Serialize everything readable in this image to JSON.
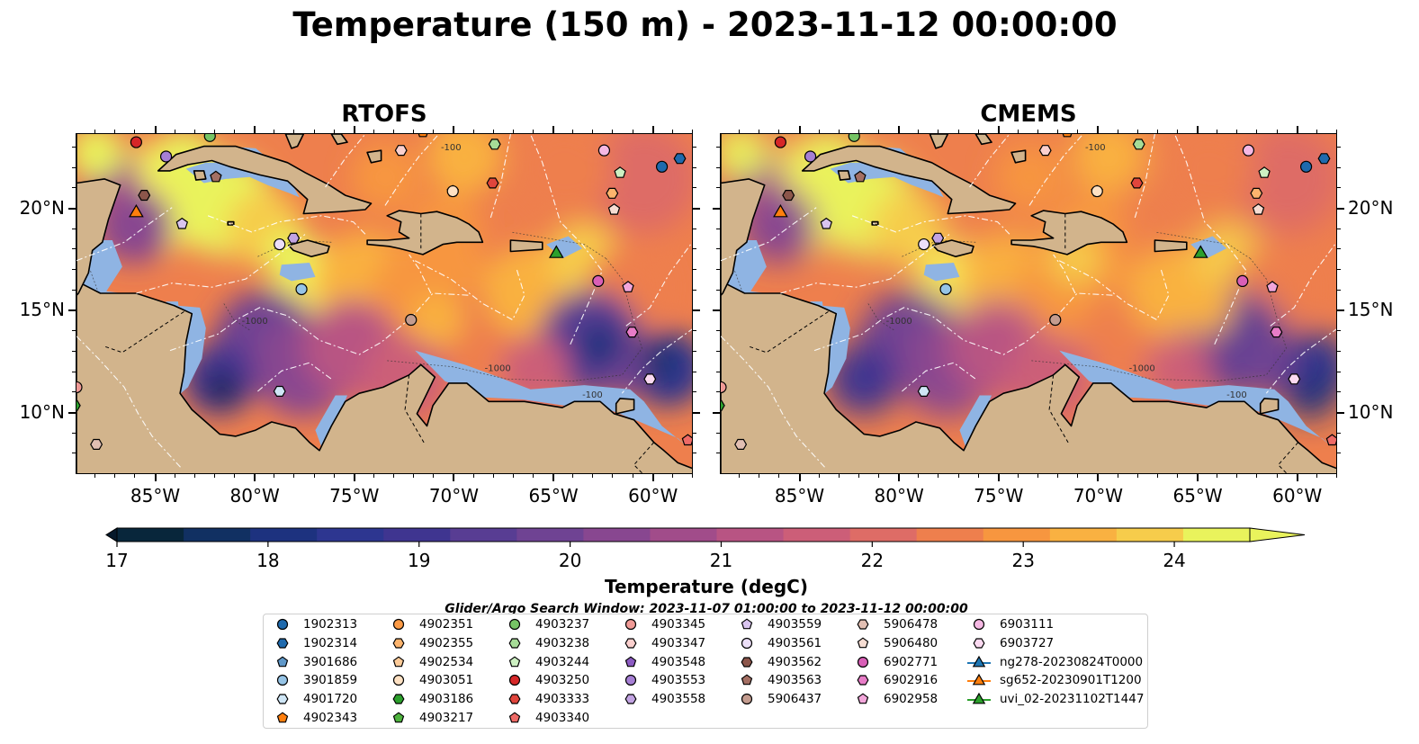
{
  "title": "Temperature (150 m) - 2023-11-12 00:00:00",
  "panels": [
    {
      "title": "RTOFS"
    },
    {
      "title": "CMEMS"
    }
  ],
  "map": {
    "lon_range": [
      -89,
      -58
    ],
    "lat_range": [
      7,
      23.7
    ],
    "lon_ticks": [
      {
        "value": -85,
        "label": "85°W"
      },
      {
        "value": -80,
        "label": "80°W"
      },
      {
        "value": -75,
        "label": "75°W"
      },
      {
        "value": -70,
        "label": "70°W"
      },
      {
        "value": -65,
        "label": "65°W"
      },
      {
        "value": -60,
        "label": "60°W"
      }
    ],
    "lat_ticks": [
      {
        "value": 20,
        "label": "20°N"
      },
      {
        "value": 15,
        "label": "15°N"
      },
      {
        "value": 10,
        "label": "10°N"
      }
    ],
    "contour_labels": [
      "-1000",
      "-1000",
      "-100",
      "-100"
    ],
    "colors": {
      "land": "#d2b48c",
      "shelf": "#8fb4e3",
      "deep_cold": "#0b2236",
      "eez": "#ffffff",
      "coast": "#000000"
    }
  },
  "colorbar": {
    "label": "Temperature (degC)",
    "min": 17,
    "max": 24.5,
    "step": 0.5,
    "ticks": [
      17,
      18,
      19,
      20,
      21,
      22,
      23,
      24
    ],
    "colors": [
      "#08263b",
      "#113062",
      "#1d327f",
      "#2d3690",
      "#3f3590",
      "#583d93",
      "#6f4393",
      "#884790",
      "#a14c8a",
      "#b85483",
      "#cc5e78",
      "#de6c66",
      "#ee7f4d",
      "#f7963f",
      "#f9b141",
      "#f6cc4b",
      "#e9f35c"
    ],
    "under_color": "#06192b",
    "over_color": "#e9f35c"
  },
  "search_window": "Glider/Argo Search Window: 2023-11-07 01:00:00 to 2023-11-12 00:00:00",
  "legend": {
    "columns": [
      [
        {
          "label": "1902313",
          "marker": "circle",
          "color": "#1f6aad"
        },
        {
          "label": "1902314",
          "marker": "hexagon",
          "color": "#1f6aad"
        },
        {
          "label": "3901686",
          "marker": "pentagon",
          "color": "#5f98c9"
        },
        {
          "label": "3901859",
          "marker": "circle",
          "color": "#96c4e6"
        },
        {
          "label": "4901720",
          "marker": "hexagon",
          "color": "#cfe6f6"
        },
        {
          "label": "4902343",
          "marker": "pentagon",
          "color": "#ff7f0e"
        }
      ],
      [
        {
          "label": "4902351",
          "marker": "circle",
          "color": "#fc9a45"
        },
        {
          "label": "4902355",
          "marker": "hexagon",
          "color": "#fdb46d"
        },
        {
          "label": "4902534",
          "marker": "pentagon",
          "color": "#fdcb99"
        },
        {
          "label": "4903051",
          "marker": "circle",
          "color": "#fee1c3"
        },
        {
          "label": "4903186",
          "marker": "hexagon",
          "color": "#2ca02c"
        },
        {
          "label": "4903217",
          "marker": "pentagon",
          "color": "#4eb33e"
        }
      ],
      [
        {
          "label": "4903237",
          "marker": "circle",
          "color": "#76c465"
        },
        {
          "label": "4903238",
          "marker": "hexagon",
          "color": "#a6dc97"
        },
        {
          "label": "4903244",
          "marker": "pentagon",
          "color": "#cdf0c2"
        },
        {
          "label": "4903250",
          "marker": "circle",
          "color": "#d62728"
        },
        {
          "label": "4903333",
          "marker": "hexagon",
          "color": "#e0453c"
        },
        {
          "label": "4903340",
          "marker": "pentagon",
          "color": "#ee6a66"
        }
      ],
      [
        {
          "label": "4903345",
          "marker": "circle",
          "color": "#f09a96"
        },
        {
          "label": "4903347",
          "marker": "hexagon",
          "color": "#fbd0ce"
        },
        {
          "label": "4903548",
          "marker": "pentagon",
          "color": "#8c5bc2"
        },
        {
          "label": "4903553",
          "marker": "circle",
          "color": "#a67fd4"
        },
        {
          "label": "4903558",
          "marker": "hexagon",
          "color": "#c2a3e2"
        }
      ],
      [
        {
          "label": "4903559",
          "marker": "pentagon",
          "color": "#d9c4ef"
        },
        {
          "label": "4903561",
          "marker": "circle",
          "color": "#ecdff8"
        },
        {
          "label": "4903562",
          "marker": "hexagon",
          "color": "#8c564b"
        },
        {
          "label": "4903563",
          "marker": "pentagon",
          "color": "#a46f63"
        },
        {
          "label": "5906437",
          "marker": "circle",
          "color": "#c49c8f"
        }
      ],
      [
        {
          "label": "5906478",
          "marker": "hexagon",
          "color": "#e2bfb3"
        },
        {
          "label": "5906480",
          "marker": "pentagon",
          "color": "#f6ddd3"
        },
        {
          "label": "6902771",
          "marker": "circle",
          "color": "#d95fb7"
        },
        {
          "label": "6902916",
          "marker": "hexagon",
          "color": "#e77cc7"
        },
        {
          "label": "6902958",
          "marker": "pentagon",
          "color": "#f2a6da"
        }
      ],
      [
        {
          "label": "6903111",
          "marker": "circle",
          "color": "#f5b8e3"
        },
        {
          "label": "6903727",
          "marker": "hexagon",
          "color": "#fbdaf1"
        },
        {
          "label": "ng278-20230824T0000",
          "marker": "triangle-line",
          "color": "#1f77b4"
        },
        {
          "label": "sg652-20230901T1200",
          "marker": "triangle-line",
          "color": "#ff7f0e"
        },
        {
          "label": "uvi_02-20231102T1447",
          "marker": "triangle-line",
          "color": "#2ca02c"
        }
      ]
    ]
  }
}
